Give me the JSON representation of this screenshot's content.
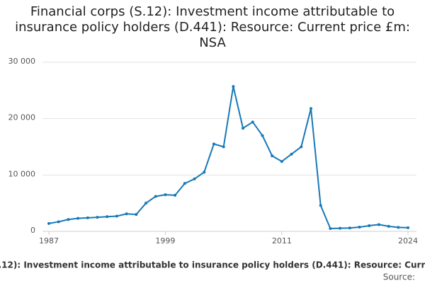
{
  "chart_data": {
    "type": "line",
    "title": "Financial corps (S.12): Investment income attributable to insurance policy holders (D.441): Resource: Current price £m: NSA",
    "x": [
      1987,
      1988,
      1989,
      1990,
      1991,
      1992,
      1993,
      1994,
      1995,
      1996,
      1997,
      1998,
      1999,
      2000,
      2001,
      2002,
      2003,
      2004,
      2005,
      2006,
      2007,
      2008,
      2009,
      2010,
      2011,
      2012,
      2013,
      2014,
      2015,
      2016,
      2017,
      2018,
      2019,
      2020,
      2021,
      2022,
      2023,
      2024
    ],
    "series": [
      {
        "name": "Financial corps (S.12): Investment income attributable to insurance policy holders (D.441): Resource: Current price £m: NSA",
        "color": "#1679b8",
        "values": [
          1400,
          1700,
          2100,
          2300,
          2400,
          2500,
          2600,
          2700,
          3100,
          3000,
          5000,
          6200,
          6500,
          6400,
          8500,
          9300,
          10500,
          15500,
          15000,
          25700,
          18300,
          19400,
          17000,
          13400,
          12400,
          13700,
          15000,
          21800,
          4600,
          500,
          550,
          600,
          750,
          1000,
          1200,
          900,
          700,
          650
        ]
      }
    ],
    "xlim": [
      1987,
      2024
    ],
    "xticks": [
      1987,
      1999,
      2011,
      2024
    ],
    "ylim": [
      0,
      30000
    ],
    "yticks": [
      0,
      {
        "value": 10000,
        "label": "10 000"
      },
      {
        "value": 20000,
        "label": "20 000"
      },
      {
        "value": 30000,
        "label": "30 000"
      }
    ],
    "grid": true,
    "source": "Source:"
  }
}
